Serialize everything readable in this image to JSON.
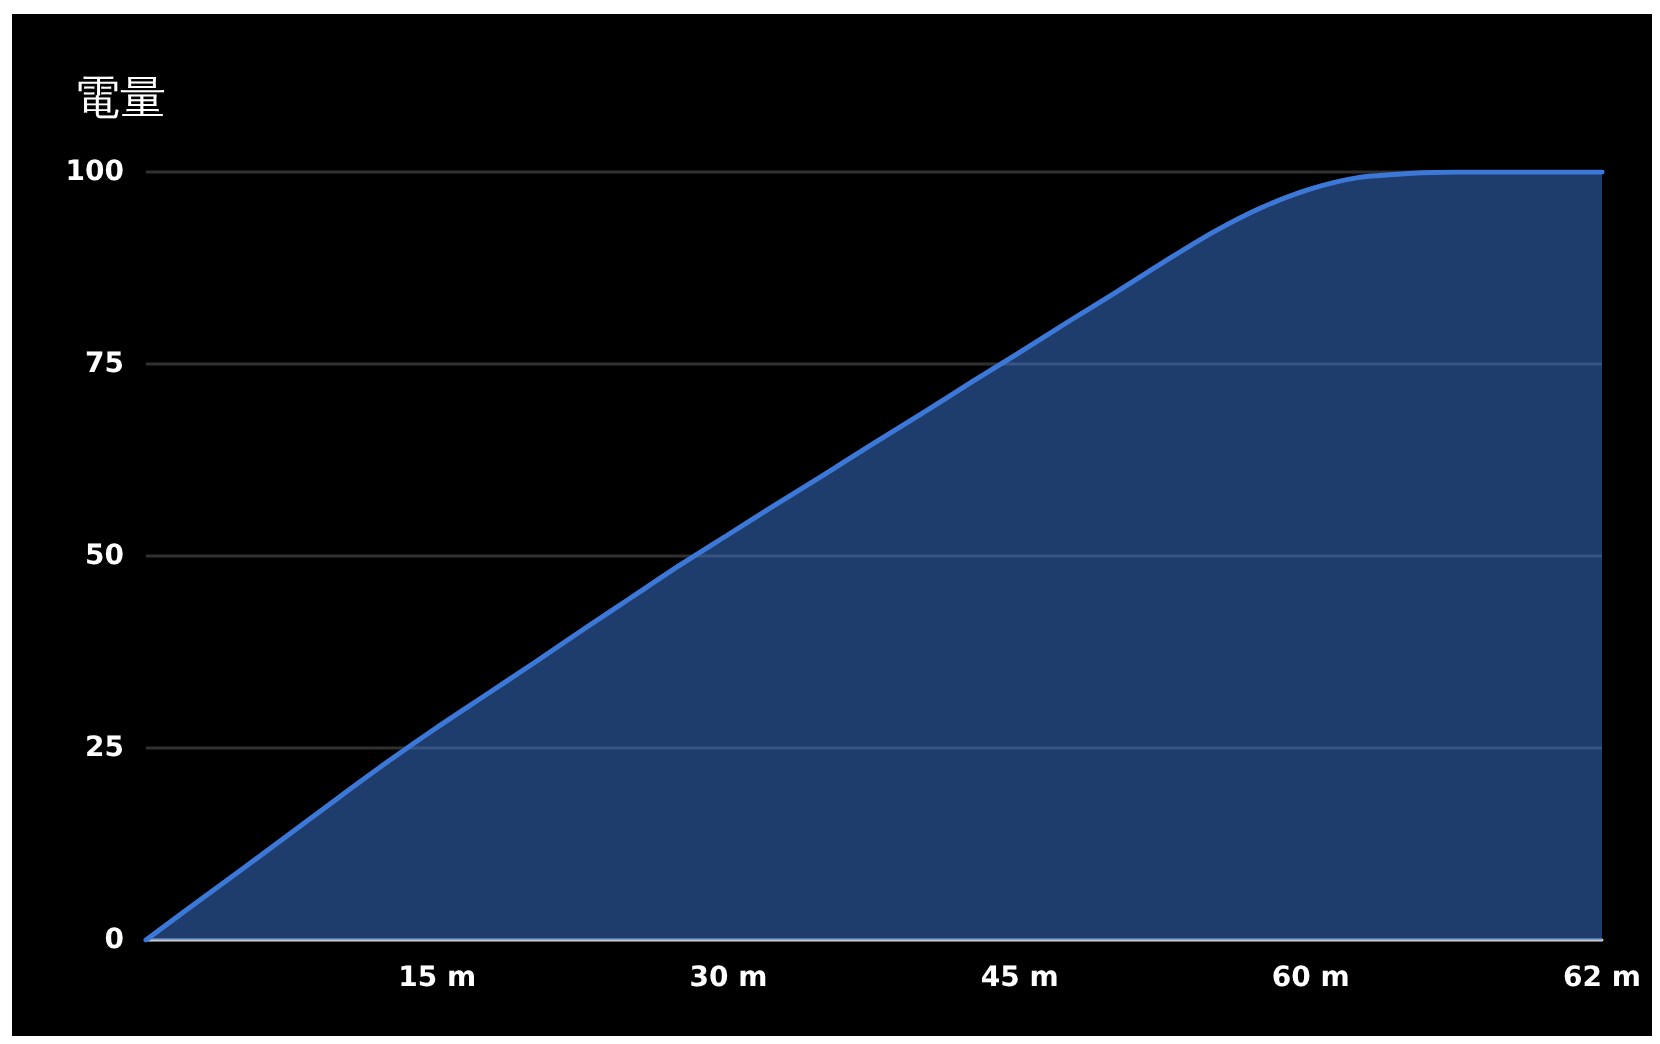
{
  "chart_data": {
    "type": "area",
    "title": "電量",
    "categories": [
      null,
      null,
      null,
      null,
      null,
      null,
      "15 m",
      null,
      null,
      null,
      null,
      null,
      "30 m",
      null,
      null,
      null,
      null,
      null,
      "45 m",
      null,
      null,
      null,
      null,
      null,
      "60 m",
      null,
      null,
      null,
      null,
      null,
      "62 m"
    ],
    "values": [
      0,
      4.7,
      9.3,
      14,
      18.7,
      23.3,
      27.7,
      31.9,
      36.1,
      40.4,
      44.6,
      48.8,
      52.8,
      56.8,
      60.7,
      64.7,
      68.6,
      72.6,
      76.5,
      80.5,
      84.4,
      88.4,
      92.2,
      95.4,
      97.8,
      99.3,
      99.8,
      100,
      100,
      100,
      100
    ],
    "color": "#3c78d8",
    "ylim": [
      0,
      100
    ],
    "yticks": [
      0,
      25,
      50,
      75,
      100
    ],
    "grid": "y",
    "marker": "none",
    "line_style": "solid"
  }
}
